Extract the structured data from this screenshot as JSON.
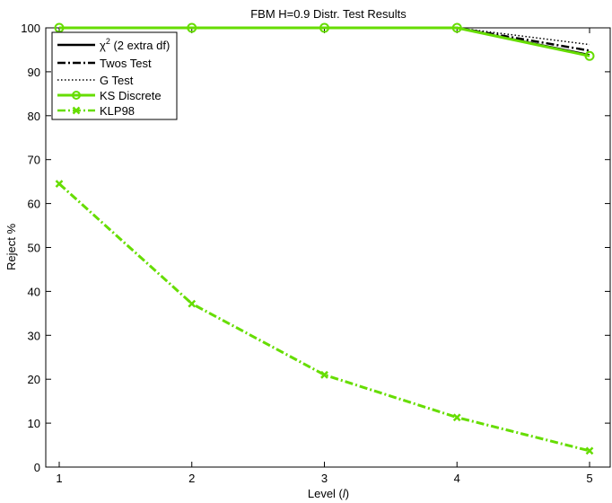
{
  "chart_data": {
    "type": "line",
    "title": "FBM H=0.9 Distr. Test Results",
    "xlabel_main": "Level (",
    "xlabel_var": "l",
    "xlabel_end": ")",
    "ylabel": "Reject %",
    "xlim": [
      1,
      5
    ],
    "ylim": [
      0,
      100
    ],
    "x_ticks": [
      1,
      2,
      3,
      4,
      5
    ],
    "y_ticks": [
      0,
      10,
      20,
      30,
      40,
      50,
      60,
      70,
      80,
      90,
      100
    ],
    "grid": false,
    "legend_position": "top-left",
    "x": [
      1,
      2,
      3,
      4,
      5
    ],
    "series": [
      {
        "name": "χ² (2 extra df)",
        "legend_main": "χ",
        "legend_sup": "2",
        "legend_rest": " (2 extra df)",
        "values": [
          100,
          100,
          100,
          100,
          93.8
        ],
        "color": "#000000",
        "style": "solid",
        "marker": "none"
      },
      {
        "name": "Twos Test",
        "values": [
          100,
          100,
          100,
          100,
          94.8
        ],
        "color": "#000000",
        "style": "dashdot",
        "marker": "none"
      },
      {
        "name": "G Test",
        "values": [
          100,
          100,
          100,
          100,
          96.2
        ],
        "color": "#000000",
        "style": "dotted",
        "marker": "none"
      },
      {
        "name": "KS Discrete",
        "values": [
          100,
          100,
          100,
          100,
          93.6
        ],
        "color": "#66dd00",
        "style": "solid",
        "marker": "circle"
      },
      {
        "name": "KLP98",
        "values": [
          64.5,
          37.2,
          21.0,
          11.3,
          3.7
        ],
        "color": "#66dd00",
        "style": "dashdot",
        "marker": "x"
      }
    ]
  }
}
